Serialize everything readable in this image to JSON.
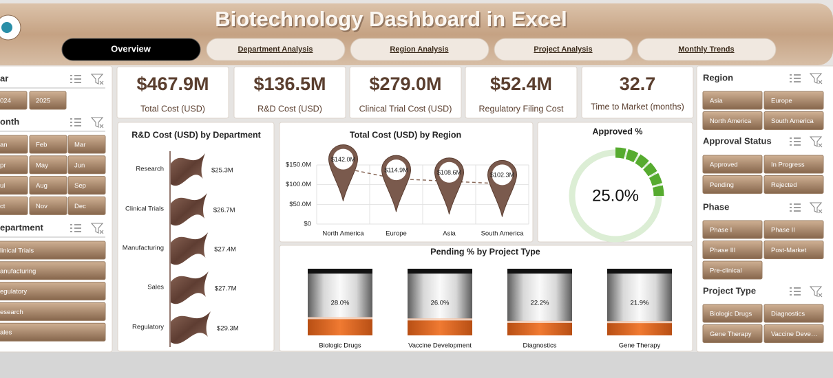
{
  "header": {
    "title": "Biotechnology Dashboard in Excel",
    "tabs": [
      "Overview",
      "Department Analysis",
      "Region Analysis",
      "Project Analysis",
      "Monthly Trends"
    ]
  },
  "left_panel": {
    "slicers": [
      {
        "title": "ar",
        "items": [
          "024",
          "2025"
        ]
      },
      {
        "title": "onth",
        "items": [
          "an",
          "Feb",
          "Mar",
          "pr",
          "May",
          "Jun",
          "ul",
          "Aug",
          "Sep",
          "ct",
          "Nov",
          "Dec"
        ]
      },
      {
        "title": "epartment",
        "items": [
          "linical Trials",
          "anufacturing",
          "egulatory",
          "esearch",
          "ales"
        ]
      }
    ]
  },
  "kpis": [
    {
      "value": "$467.9M",
      "label": "Total Cost (USD)"
    },
    {
      "value": "$136.5M",
      "label": "R&D Cost (USD)"
    },
    {
      "value": "$279.0M",
      "label": "Clinical Trial Cost (USD)"
    },
    {
      "value": "$52.4M",
      "label": "Regulatory Filing Cost"
    },
    {
      "value": "32.7",
      "label": "Time to Market (months)"
    }
  ],
  "chart_data": [
    {
      "type": "barh",
      "title": "R&D Cost (USD) by Department",
      "categories": [
        "Research",
        "Clinical Trials",
        "Manufacturing",
        "Sales",
        "Regulatory"
      ],
      "values": [
        25.3,
        26.7,
        27.4,
        27.7,
        29.3
      ],
      "value_labels": [
        "$25.3M",
        "$26.7M",
        "$27.4M",
        "$27.7M",
        "$29.3M"
      ],
      "color": "#6e4a3e"
    },
    {
      "type": "line",
      "title": "Total Cost (USD) by Region",
      "categories": [
        "North America",
        "Europe",
        "Asia",
        "South America"
      ],
      "values": [
        142.0,
        114.9,
        108.6,
        102.3
      ],
      "value_labels": [
        "$142.0M",
        "$114.9M",
        "$108.6M",
        "$102.3M"
      ],
      "color": "#7a5a4d",
      "ylim": [
        0,
        150
      ],
      "yticks": [
        {
          "value": 0,
          "label": "$0"
        },
        {
          "value": 50,
          "label": "$50.0M"
        },
        {
          "value": 100,
          "label": "$100.0M"
        },
        {
          "value": 150,
          "label": "$150.0M"
        }
      ],
      "grid": true
    },
    {
      "type": "gauge",
      "title": "Approved %",
      "value": 25.0,
      "value_label": "25.0%",
      "ylim": [
        0,
        100
      ],
      "color": "#56ab2f"
    },
    {
      "type": "bar",
      "title": "Pending % by Project Type",
      "categories": [
        "Biologic Drugs",
        "Vaccine Development",
        "Diagnostics",
        "Gene Therapy"
      ],
      "values": [
        28.0,
        26.0,
        22.2,
        21.9
      ],
      "value_labels": [
        "28.0%",
        "26.0%",
        "22.2%",
        "21.9%"
      ],
      "ylim": [
        0,
        100
      ],
      "color": "#e8702a"
    }
  ],
  "right_panel": {
    "slicers": [
      {
        "title": "Region",
        "items": [
          "Asia",
          "Europe",
          "North America",
          "South America"
        ]
      },
      {
        "title": "Approval Status",
        "items": [
          "Approved",
          "In Progress",
          "Pending",
          "Rejected"
        ]
      },
      {
        "title": "Phase",
        "items": [
          "Phase I",
          "Phase II",
          "Phase III",
          "Post-Market",
          "Pre-clinical"
        ]
      },
      {
        "title": "Project Type",
        "items": [
          "Biologic Drugs",
          "Diagnostics",
          "Gene Therapy",
          "Vaccine Deve…"
        ]
      }
    ]
  }
}
